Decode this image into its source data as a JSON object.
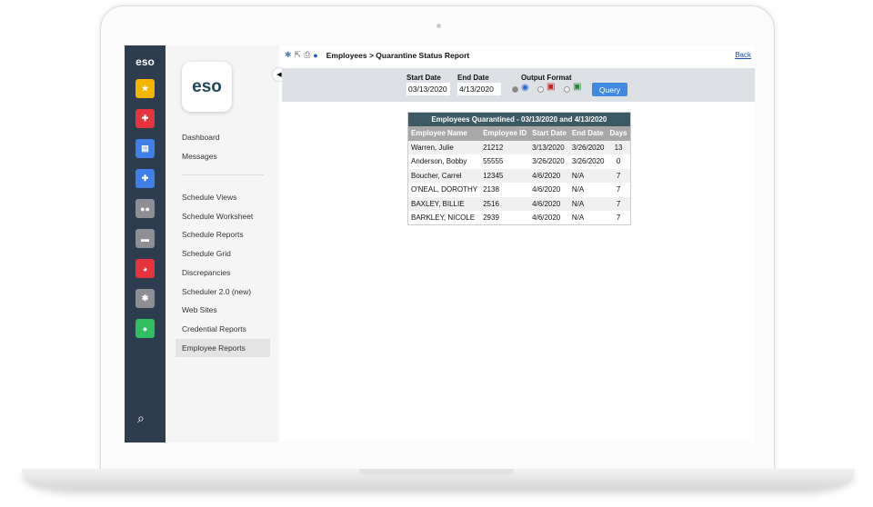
{
  "rail": {
    "logo": "eso",
    "items": [
      {
        "icon": "star-icon",
        "glyph": "★",
        "color": "#f5b400"
      },
      {
        "icon": "medical-plus-icon",
        "glyph": "✚",
        "color": "#e5343a"
      },
      {
        "icon": "document-icon",
        "glyph": "▤",
        "color": "#3f7fe8"
      },
      {
        "icon": "ambulance-icon",
        "glyph": "✚",
        "color": "#3f7fe8"
      },
      {
        "icon": "users-icon",
        "glyph": "●●",
        "color": "#8c9095"
      },
      {
        "icon": "briefcase-icon",
        "glyph": "▬",
        "color": "#8c9095"
      },
      {
        "icon": "pie-chart-icon",
        "glyph": "◕",
        "color": "#e5343a"
      },
      {
        "icon": "gear-icon",
        "glyph": "✱",
        "color": "#8c9095"
      },
      {
        "icon": "user-icon",
        "glyph": "●",
        "color": "#2fbf5f"
      }
    ],
    "search_icon": "search-icon"
  },
  "sidebar": {
    "logo": "eso",
    "top": [
      "Dashboard",
      "Messages"
    ],
    "items": [
      "Schedule Views",
      "Schedule Worksheet",
      "Schedule Reports",
      "Schedule Grid",
      "Discrepancies",
      "Scheduler 2.0 (new)",
      "Web Sites",
      "Credential Reports",
      "Employee Reports"
    ],
    "active": "Employee Reports"
  },
  "header": {
    "breadcrumb": "Employees > Quarantine Status Report",
    "back": "Back"
  },
  "filters": {
    "start_label": "Start Date",
    "start_value": "03/13/2020",
    "end_label": "End Date",
    "end_value": "4/13/2020",
    "format_label": "Output Format",
    "formats": [
      "web",
      "pdf",
      "excel"
    ],
    "selected_format": "web",
    "query": "Query"
  },
  "report": {
    "title": "Employees Quarantined - 03/13/2020 and 4/13/2020",
    "columns": [
      "Employee Name",
      "Employee ID",
      "Start Date",
      "End Date",
      "Days"
    ],
    "rows": [
      [
        "Warren, Julie",
        "21212",
        "3/13/2020",
        "3/26/2020",
        "13"
      ],
      [
        "Anderson, Bobby",
        "55555",
        "3/26/2020",
        "3/26/2020",
        "0"
      ],
      [
        "Boucher, Carrel",
        "12345",
        "4/6/2020",
        "N/A",
        "7"
      ],
      [
        "O'NEAL, DOROTHY",
        "2138",
        "4/6/2020",
        "N/A",
        "7"
      ],
      [
        "BAXLEY, BILLIE",
        "2516",
        "4/6/2020",
        "N/A",
        "7"
      ],
      [
        "BARKLEY, NICOLE",
        "2939",
        "4/6/2020",
        "N/A",
        "7"
      ]
    ]
  },
  "colors": {
    "rail": "#2d3c4e",
    "table_title": "#3b5a66",
    "query_button": "#3f8ae0"
  }
}
